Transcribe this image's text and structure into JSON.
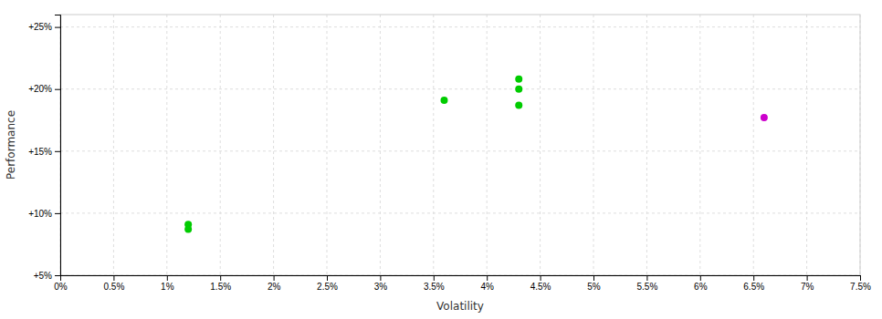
{
  "chart_data": {
    "type": "scatter",
    "xlabel": "Volatility",
    "ylabel": "Performance",
    "xlim": [
      0.0,
      0.075
    ],
    "ylim": [
      0.05,
      0.26
    ],
    "xticks": [
      {
        "value": 0.0,
        "label": "0%"
      },
      {
        "value": 0.005,
        "label": "0.5%"
      },
      {
        "value": 0.01,
        "label": "1%"
      },
      {
        "value": 0.015,
        "label": "1.5%"
      },
      {
        "value": 0.02,
        "label": "2%"
      },
      {
        "value": 0.025,
        "label": "2.5%"
      },
      {
        "value": 0.03,
        "label": "3%"
      },
      {
        "value": 0.035,
        "label": "3.5%"
      },
      {
        "value": 0.04,
        "label": "4%"
      },
      {
        "value": 0.045,
        "label": "4.5%"
      },
      {
        "value": 0.05,
        "label": "5%"
      },
      {
        "value": 0.055,
        "label": "5.5%"
      },
      {
        "value": 0.06,
        "label": "6%"
      },
      {
        "value": 0.065,
        "label": "6.5%"
      },
      {
        "value": 0.07,
        "label": "7%"
      },
      {
        "value": 0.075,
        "label": "7.5%"
      }
    ],
    "yticks": [
      {
        "value": 0.05,
        "label": "+5%"
      },
      {
        "value": 0.1,
        "label": "+10%"
      },
      {
        "value": 0.15,
        "label": "+15%"
      },
      {
        "value": 0.2,
        "label": "+20%"
      },
      {
        "value": 0.25,
        "label": "+25%"
      }
    ],
    "grid": true,
    "series": [
      {
        "color": "#00cc00",
        "x": [
          0.012,
          0.012,
          0.036,
          0.043,
          0.043,
          0.043
        ],
        "values": [
          0.091,
          0.087,
          0.191,
          0.208,
          0.2,
          0.187
        ]
      },
      {
        "color": "#cc00cc",
        "x": [
          0.066
        ],
        "values": [
          0.177
        ]
      }
    ]
  }
}
